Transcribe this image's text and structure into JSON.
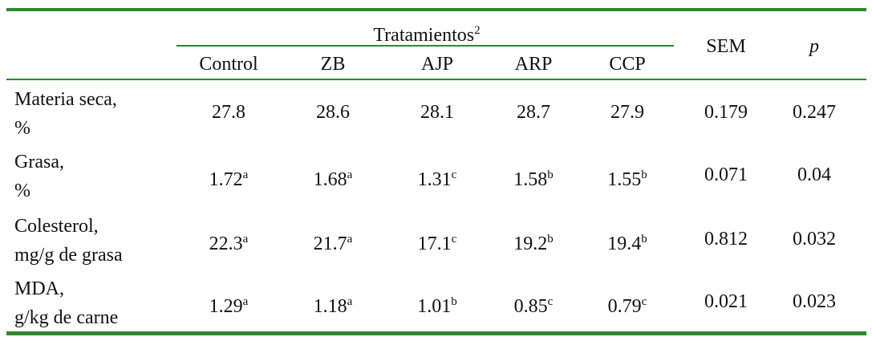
{
  "table": {
    "group_header": {
      "text": "Tratamientos",
      "sup": "2"
    },
    "columns": [
      "Control",
      "ZB",
      "AJP",
      "ARP",
      "CCP",
      "SEM",
      "p"
    ],
    "rows": [
      {
        "label": [
          "Materia seca,",
          "%"
        ],
        "cells": [
          {
            "value": "27.8"
          },
          {
            "value": "28.6"
          },
          {
            "value": "28.1"
          },
          {
            "value": "28.7"
          },
          {
            "value": "27.9"
          },
          {
            "value": "0.179"
          },
          {
            "value": "0.247"
          }
        ]
      },
      {
        "label": [
          "Grasa,",
          "%"
        ],
        "cells": [
          {
            "value": "1.72",
            "sup": "a"
          },
          {
            "value": "1.68",
            "sup": "a"
          },
          {
            "value": "1.31",
            "sup": "c"
          },
          {
            "value": "1.58",
            "sup": "b"
          },
          {
            "value": "1.55",
            "sup": "b"
          },
          {
            "value": "0.071"
          },
          {
            "value": "0.04"
          }
        ]
      },
      {
        "label": [
          "Colesterol,",
          "mg/g de grasa"
        ],
        "cells": [
          {
            "value": "22.3",
            "sup": "a"
          },
          {
            "value": "21.7",
            "sup": "a"
          },
          {
            "value": "17.1",
            "sup": "c"
          },
          {
            "value": "19.2",
            "sup": "b"
          },
          {
            "value": "19.4",
            "sup": "b"
          },
          {
            "value": "0.812"
          },
          {
            "value": "0.032"
          }
        ]
      },
      {
        "label": [
          "MDA,",
          "g/kg de carne"
        ],
        "cells": [
          {
            "value": "1.29",
            "sup": "a"
          },
          {
            "value": "1.18",
            "sup": "a"
          },
          {
            "value": "1.01",
            "sup": "b"
          },
          {
            "value": "0.85",
            "sup": "c"
          },
          {
            "value": "0.79",
            "sup": "c"
          },
          {
            "value": "0.021"
          },
          {
            "value": "0.023"
          }
        ]
      }
    ]
  }
}
